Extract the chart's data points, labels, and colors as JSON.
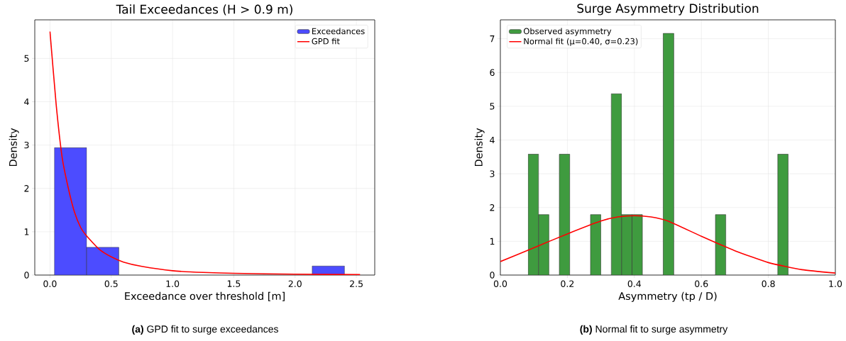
{
  "chart_data": [
    {
      "type": "histogram",
      "title": "Tail Exceedances (H > 0.9 m)",
      "xlabel": "Exceedance over threshold [m]",
      "ylabel": "Density",
      "series": [
        {
          "name": "Exceedances",
          "color": "#4c4cff",
          "bins": [
            0.036,
            0.299,
            0.562,
            0.825,
            1.088,
            1.351,
            1.614,
            1.877,
            2.14,
            2.403
          ],
          "values": [
            2.94,
            0.64,
            0,
            0,
            0,
            0,
            0,
            0,
            0.21
          ]
        },
        {
          "name": "GPD fit",
          "type": "line",
          "color": "#ff0000",
          "x": [
            0,
            0.05,
            0.1,
            0.15,
            0.2,
            0.25,
            0.3,
            0.4,
            0.5,
            0.6,
            0.75,
            1.0,
            1.25,
            1.5,
            2.0,
            2.53
          ],
          "values": [
            5.62,
            3.95,
            2.7,
            2.0,
            1.45,
            1.1,
            0.9,
            0.6,
            0.42,
            0.3,
            0.2,
            0.1,
            0.06,
            0.04,
            0.02,
            0.01
          ]
        }
      ],
      "xlim": [
        -0.124,
        2.65
      ],
      "ylim": [
        0,
        5.89
      ],
      "xticks": [
        {
          "value": 0,
          "label": "0.0"
        },
        0.5,
        {
          "value": 1,
          "label": "1.0"
        },
        1.5,
        {
          "value": 2,
          "label": "2.0"
        },
        2.5
      ],
      "yticks": [
        0,
        1,
        2,
        3,
        4,
        5
      ],
      "grid": true,
      "legend": "top right",
      "annotations": [
        "**(a)** GPD fit to surge exceedances"
      ]
    },
    {
      "type": "histogram",
      "title": "Surge Asymmetry Distribution",
      "xlabel": "Asymmetry (tp / D)",
      "ylabel": "Density",
      "series": [
        {
          "name": "Observed asymmetry",
          "color": "#3f9b3f",
          "bins": [
            0.083,
            0.114,
            0.145,
            0.176,
            0.207,
            0.238,
            0.269,
            0.3,
            0.331,
            0.362,
            0.393,
            0.424,
            0.455,
            0.486,
            0.518,
            0.549,
            0.58,
            0.611,
            0.642,
            0.673,
            0.704,
            0.735,
            0.766,
            0.797,
            0.828,
            0.859
          ],
          "values": [
            3.58,
            1.79,
            0,
            3.58,
            0,
            0,
            1.79,
            0,
            5.37,
            1.79,
            1.79,
            0,
            0,
            7.16,
            0,
            0,
            0,
            0,
            1.79,
            0,
            0,
            0,
            0,
            0,
            3.58
          ]
        },
        {
          "name": "Normal fit (μ=0.40, σ=0.23)",
          "type": "line",
          "color": "#ff0000",
          "x": [
            0,
            0.1,
            0.2,
            0.3,
            0.35,
            0.4,
            0.45,
            0.5,
            0.6,
            0.7,
            0.8,
            0.9,
            1.0
          ],
          "values": [
            0.4,
            0.81,
            1.22,
            1.6,
            1.72,
            1.76,
            1.72,
            1.6,
            1.15,
            0.72,
            0.37,
            0.16,
            0.06
          ]
        }
      ],
      "xlim": [
        0,
        1
      ],
      "ylim": [
        0,
        7.56
      ],
      "xticks": [
        {
          "value": 0,
          "label": "0.0"
        },
        0.2,
        0.4,
        0.6,
        0.8,
        {
          "value": 1,
          "label": "1.0"
        }
      ],
      "yticks": [
        0,
        1,
        2,
        3,
        4,
        5,
        6,
        7
      ],
      "grid": true,
      "legend": "top left",
      "annotations": [
        "**(b)** Normal fit to surge asymmetry"
      ]
    }
  ]
}
